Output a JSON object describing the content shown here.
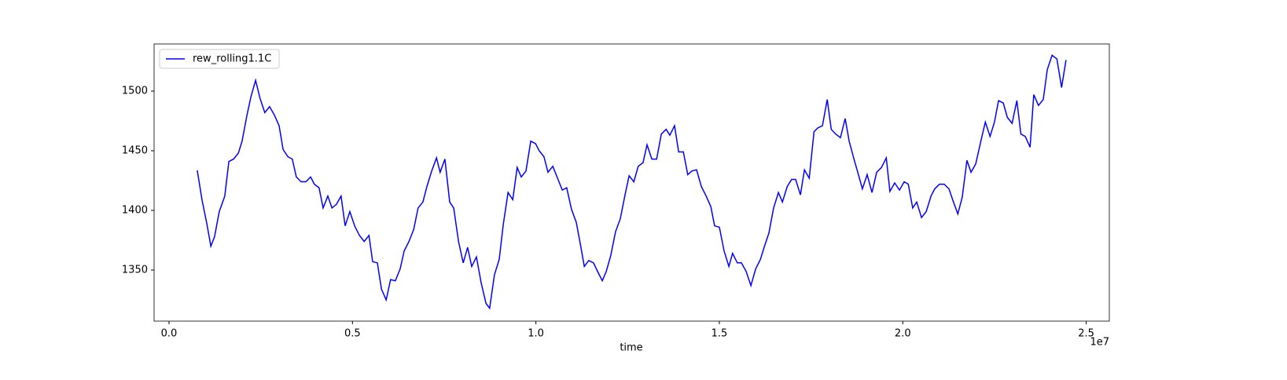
{
  "chart_data": {
    "type": "line",
    "xlabel": "time",
    "x_offset_label": "1e7",
    "xlim": [
      -0.0407,
      2.563
    ],
    "ylim": [
      1307.2,
      1539.5
    ],
    "xticks": [
      {
        "value": 0,
        "label": "0.0"
      },
      0.5,
      {
        "value": 1,
        "label": "1.0"
      },
      1.5,
      {
        "value": 2,
        "label": "2.0"
      },
      2.5
    ],
    "yticks": [
      1350,
      1400,
      1450,
      1500
    ],
    "legend": "upper left",
    "x": [
      0.077,
      0.09,
      0.103,
      0.114,
      0.124,
      0.137,
      0.152,
      0.163,
      0.176,
      0.189,
      0.199,
      0.212,
      0.223,
      0.236,
      0.248,
      0.261,
      0.274,
      0.287,
      0.3,
      0.311,
      0.324,
      0.336,
      0.347,
      0.36,
      0.373,
      0.386,
      0.396,
      0.409,
      0.42,
      0.433,
      0.444,
      0.456,
      0.469,
      0.48,
      0.493,
      0.506,
      0.519,
      0.532,
      0.545,
      0.555,
      0.568,
      0.579,
      0.592,
      0.604,
      0.617,
      0.63,
      0.641,
      0.654,
      0.667,
      0.679,
      0.692,
      0.703,
      0.716,
      0.729,
      0.739,
      0.752,
      0.765,
      0.776,
      0.789,
      0.802,
      0.814,
      0.825,
      0.838,
      0.851,
      0.864,
      0.874,
      0.887,
      0.9,
      0.911,
      0.924,
      0.937,
      0.949,
      0.96,
      0.973,
      0.986,
      0.999,
      1.009,
      1.022,
      1.033,
      1.046,
      1.059,
      1.072,
      1.084,
      1.097,
      1.11,
      1.121,
      1.132,
      1.144,
      1.157,
      1.168,
      1.181,
      1.192,
      1.204,
      1.217,
      1.23,
      1.243,
      1.254,
      1.267,
      1.279,
      1.292,
      1.303,
      1.316,
      1.329,
      1.342,
      1.355,
      1.365,
      1.378,
      1.389,
      1.402,
      1.414,
      1.425,
      1.438,
      1.451,
      1.464,
      1.477,
      1.487,
      1.5,
      1.513,
      1.526,
      1.536,
      1.549,
      1.56,
      1.573,
      1.586,
      1.599,
      1.612,
      1.622,
      1.635,
      1.648,
      1.661,
      1.672,
      1.685,
      1.697,
      1.708,
      1.721,
      1.732,
      1.745,
      1.758,
      1.768,
      1.781,
      1.794,
      1.805,
      1.817,
      1.83,
      1.843,
      1.854,
      1.867,
      1.88,
      1.89,
      1.903,
      1.916,
      1.929,
      1.942,
      1.955,
      1.965,
      1.978,
      1.991,
      2.004,
      2.015,
      2.027,
      2.038,
      2.051,
      2.064,
      2.077,
      2.087,
      2.1,
      2.113,
      2.126,
      2.137,
      2.15,
      2.162,
      2.175,
      2.186,
      2.199,
      2.212,
      2.225,
      2.238,
      2.25,
      2.261,
      2.274,
      2.285,
      2.298,
      2.311,
      2.322,
      2.334,
      2.347,
      2.357,
      2.37,
      2.383,
      2.394,
      2.407,
      2.42,
      2.433,
      2.445
    ],
    "series": [
      {
        "name": "rew_rolling1.1C",
        "color": "#0000ff",
        "values": [
          1433.6,
          1408.6,
          1388.8,
          1370,
          1378,
          1399,
          1412,
          1441,
          1443,
          1448,
          1458,
          1479,
          1495,
          1509,
          1494,
          1482,
          1487,
          1480,
          1471,
          1451,
          1445,
          1443,
          1428,
          1424,
          1424,
          1428,
          1422,
          1419,
          1402,
          1412,
          1402,
          1405,
          1412,
          1387,
          1399,
          1387,
          1379,
          1374,
          1379,
          1357,
          1356,
          1334,
          1325,
          1342,
          1341,
          1351,
          1366,
          1374,
          1384,
          1402,
          1407,
          1420,
          1433,
          1444,
          1432,
          1443,
          1407,
          1402,
          1374,
          1356,
          1369,
          1353,
          1361,
          1339,
          1322,
          1318,
          1346,
          1359,
          1388,
          1415,
          1409,
          1436,
          1428,
          1433,
          1458,
          1456,
          1450,
          1445,
          1432,
          1437,
          1427,
          1417,
          1419,
          1401,
          1390,
          1372,
          1353,
          1358,
          1356,
          1349,
          1341,
          1349,
          1362,
          1382,
          1393,
          1413,
          1429,
          1424,
          1437,
          1440,
          1455,
          1443,
          1443,
          1464,
          1468,
          1463,
          1471,
          1449,
          1449,
          1430,
          1433,
          1434,
          1420,
          1412,
          1403,
          1387,
          1386,
          1366,
          1353,
          1364,
          1356,
          1356,
          1349,
          1337,
          1351,
          1359,
          1369,
          1381,
          1402,
          1415,
          1407,
          1420,
          1426,
          1426,
          1413,
          1434,
          1427,
          1466,
          1469,
          1471,
          1493,
          1468,
          1464,
          1461,
          1477,
          1458,
          1443,
          1429,
          1418,
          1430,
          1415,
          1432,
          1436,
          1444,
          1416,
          1423,
          1417,
          1424,
          1422,
          1402,
          1407,
          1394,
          1399,
          1412,
          1418,
          1422,
          1422,
          1418,
          1408,
          1397,
          1411,
          1442,
          1432,
          1439,
          1457,
          1474,
          1462,
          1474,
          1492,
          1490,
          1478,
          1473,
          1492,
          1464,
          1462,
          1453,
          1497,
          1488,
          1493,
          1518,
          1530,
          1527,
          1503,
          1526
        ]
      }
    ]
  }
}
